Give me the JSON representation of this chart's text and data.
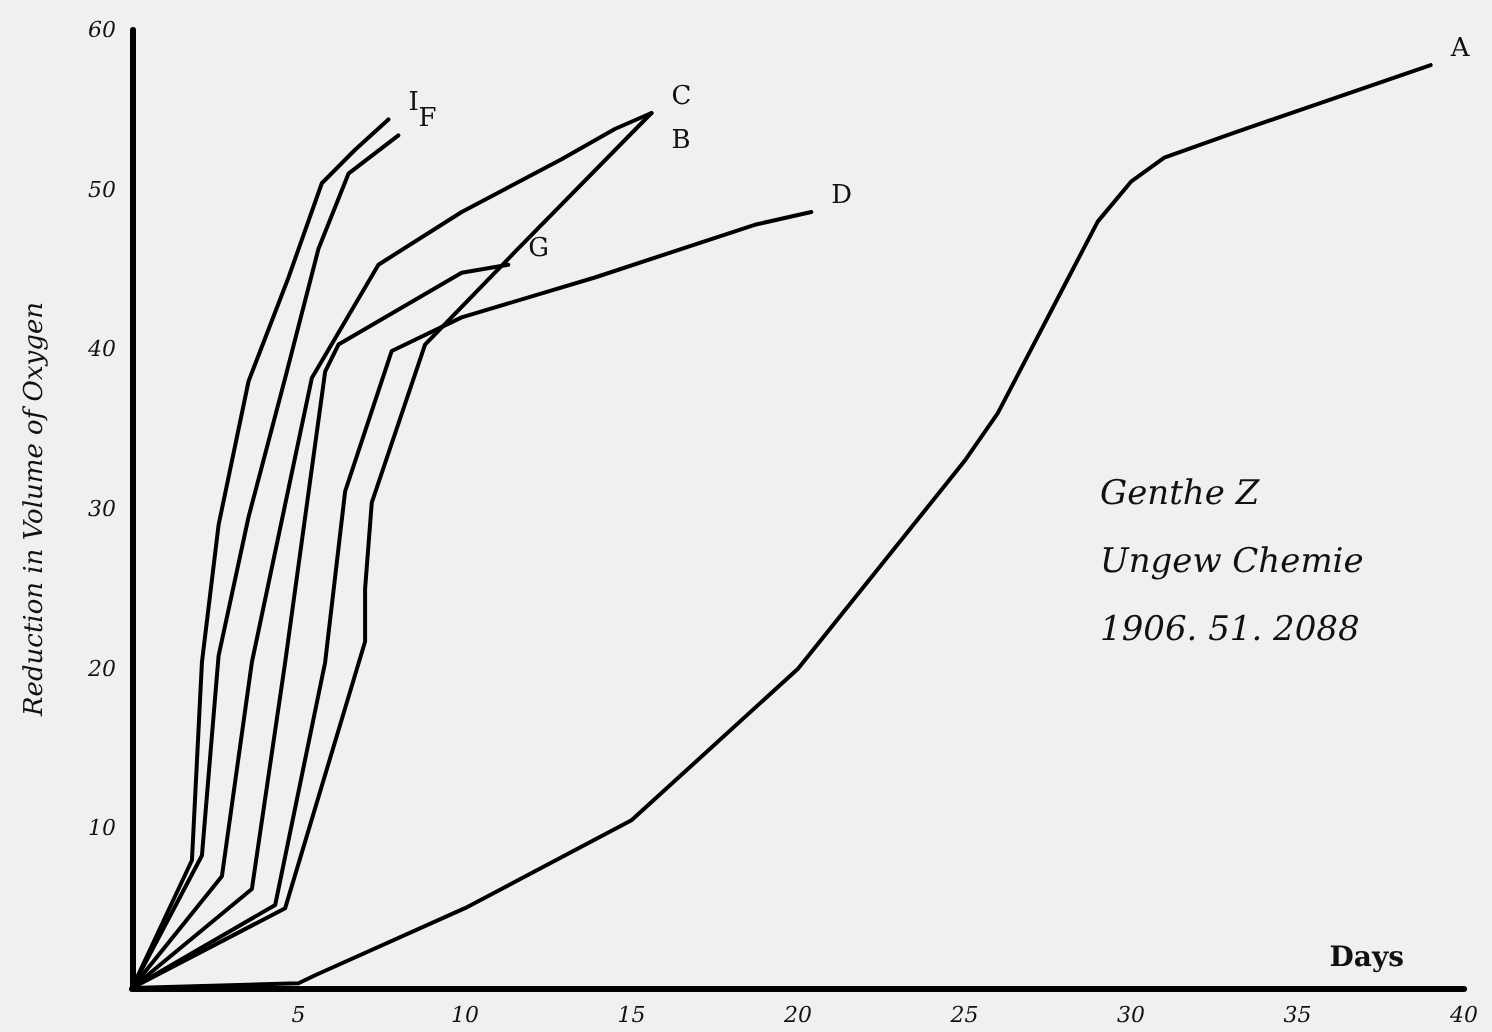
{
  "chart_data": {
    "type": "line",
    "xlabel": "Days",
    "ylabel": "Reduction in Volume of Oxygen",
    "xlim": [
      0,
      40
    ],
    "ylim": [
      0,
      60
    ],
    "xticks": [
      5,
      10,
      15,
      20,
      25,
      30,
      35,
      40
    ],
    "yticks": [
      10,
      20,
      30,
      40,
      50,
      60
    ],
    "grid": false,
    "legend": false,
    "marker": "none",
    "line_style": "solid",
    "annotations": [
      "Genthe Z",
      "Ungew Chemie",
      "1906. 51. 2088"
    ],
    "series": [
      {
        "name": "I",
        "color": "#000000",
        "x": [
          0,
          1.8,
          2.1,
          2.6,
          3.5,
          4.7,
          5.7,
          6.7,
          7.7
        ],
        "values": [
          0,
          8,
          20.4,
          29,
          38,
          44.5,
          50.4,
          52.5,
          54.4
        ]
      },
      {
        "name": "F",
        "color": "#000000",
        "x": [
          0,
          2.1,
          2.6,
          3.5,
          4.6,
          5.6,
          6.5,
          8
        ],
        "values": [
          0,
          8.3,
          20.8,
          29.5,
          38.2,
          46.3,
          51,
          53.4
        ]
      },
      {
        "name": "C",
        "color": "#000000",
        "x": [
          0,
          2.7,
          3.6,
          5.4,
          7.4,
          9.9,
          12.9,
          14.5,
          15.6
        ],
        "values": [
          0,
          7,
          20.4,
          38.2,
          45.3,
          48.6,
          51.9,
          53.8,
          54.8
        ]
      },
      {
        "name": "G",
        "color": "#000000",
        "x": [
          0,
          3.6,
          4.6,
          5.8,
          6.2,
          9.9,
          11.3
        ],
        "values": [
          0,
          6.2,
          20.4,
          38.6,
          40.3,
          44.8,
          45.3
        ]
      },
      {
        "name": "D",
        "color": "#000000",
        "x": [
          0,
          4.3,
          5.8,
          6.4,
          7.8,
          9.9,
          13.9,
          18.7,
          20.4
        ],
        "values": [
          0,
          5.2,
          20.4,
          31.1,
          39.9,
          42,
          44.5,
          47.8,
          48.6
        ]
      },
      {
        "name": "B",
        "color": "#000000",
        "x": [
          0,
          4.6,
          7,
          7,
          7.2,
          8.8,
          11.5,
          15.6
        ],
        "values": [
          0,
          5,
          21.7,
          25,
          30.4,
          40.3,
          46.1,
          54.8
        ]
      },
      {
        "name": "A",
        "color": "#000000",
        "x": [
          0,
          5,
          5.5,
          10,
          15,
          20,
          25,
          26,
          27,
          28,
          29,
          30,
          31,
          33,
          39
        ],
        "values": [
          0,
          0.3,
          0.8,
          5,
          10.5,
          20,
          33,
          36,
          40,
          44,
          48,
          50.5,
          52,
          53.5,
          57.8
        ]
      }
    ]
  }
}
